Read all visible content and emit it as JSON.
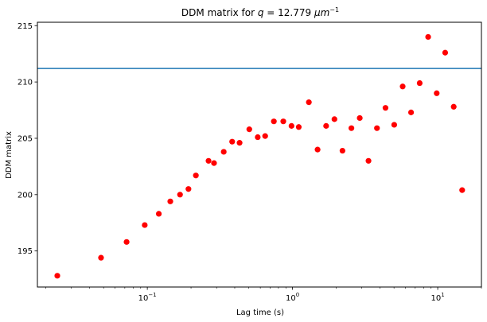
{
  "chart_data": {
    "type": "scatter",
    "title": "DDM matrix for q = 12.779 μm⁻¹",
    "title_parts": {
      "prefix": "DDM matrix for ",
      "var": "q",
      "middle": " = 12.779 ",
      "unit_var": "μm",
      "exponent": "−1"
    },
    "xlabel": "Lag time (s)",
    "ylabel": "DDM matrix",
    "xscale": "log",
    "xlim": [
      0.0175,
      20
    ],
    "ylim": [
      191.8,
      215.3
    ],
    "grid": false,
    "x_ticks": [
      {
        "value": 0.1,
        "base": "10",
        "exp": "−1"
      },
      {
        "value": 1,
        "base": "10",
        "exp": "0"
      },
      {
        "value": 10,
        "base": "10",
        "exp": "1"
      }
    ],
    "y_ticks": [
      195,
      200,
      205,
      210,
      215
    ],
    "marker_color": "#ff0000",
    "hline": {
      "y": 211.2,
      "color": "#1f77b4"
    },
    "series": [
      {
        "x": [
          0.024,
          0.048,
          0.072,
          0.096,
          0.12,
          0.144,
          0.168,
          0.192,
          0.216,
          0.264,
          0.288,
          0.336,
          0.384,
          0.432,
          0.504,
          0.576,
          0.648,
          0.744,
          0.864,
          0.984,
          1.104,
          1.296,
          1.488,
          1.704,
          1.944,
          2.208,
          2.544,
          2.904,
          3.336,
          3.816,
          4.368,
          5.016,
          5.736,
          6.552,
          7.512,
          8.592,
          9.84,
          11.256,
          12.888,
          14.736
        ],
        "y": [
          192.8,
          194.4,
          195.8,
          197.3,
          198.3,
          199.4,
          200.0,
          200.5,
          201.7,
          203.0,
          202.8,
          203.8,
          204.7,
          204.6,
          205.8,
          205.1,
          205.2,
          206.5,
          206.5,
          206.1,
          206.0,
          208.2,
          204.0,
          206.1,
          206.7,
          203.9,
          205.9,
          206.8,
          203.0,
          205.9,
          207.7,
          206.2,
          209.6,
          207.3,
          209.9,
          214.0,
          209.0,
          212.6,
          207.8,
          200.4
        ]
      }
    ]
  }
}
